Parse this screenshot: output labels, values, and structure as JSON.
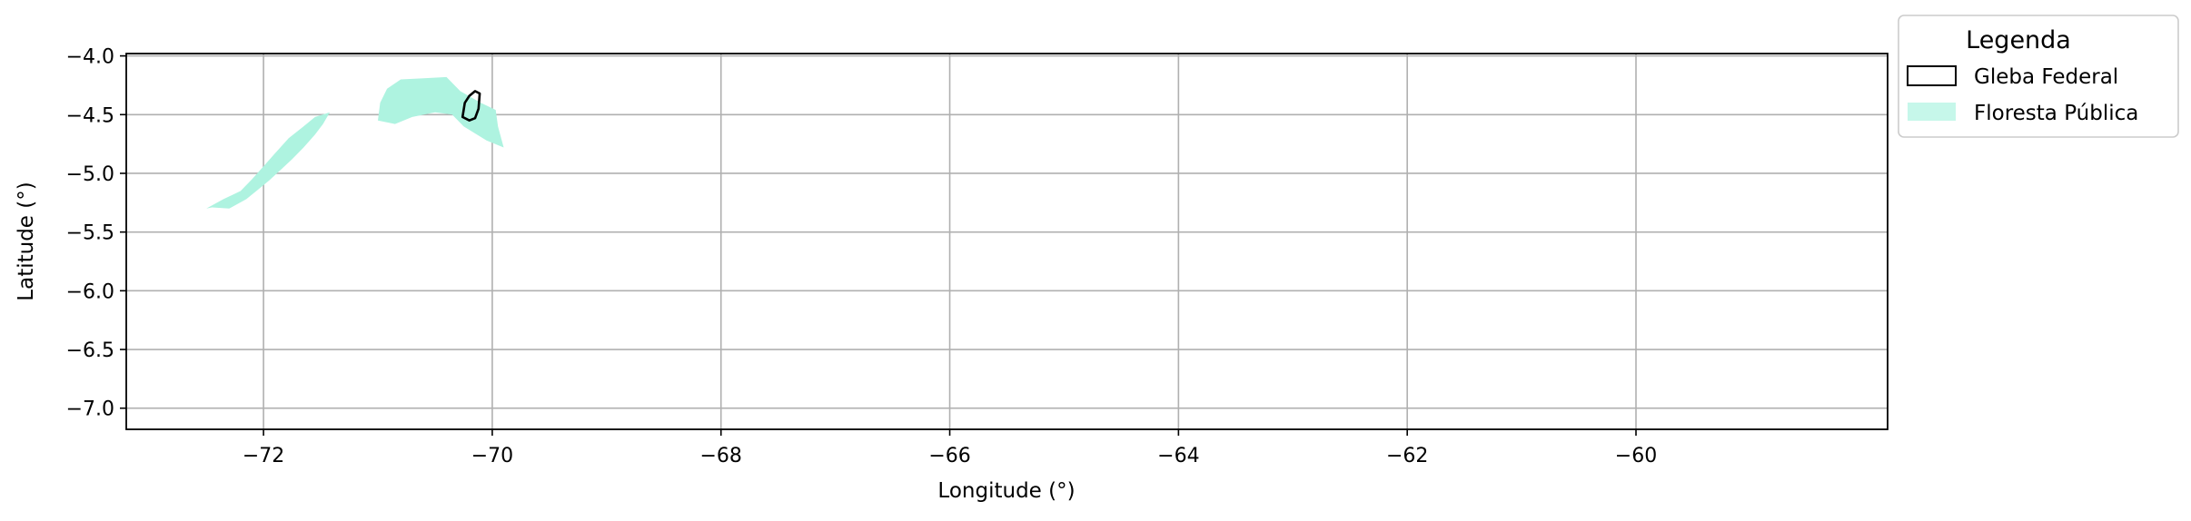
{
  "chart_data": {
    "type": "map",
    "xlabel": "Longitude (°)",
    "ylabel": "Latitude (°)",
    "xlim": [
      -73.2,
      -57.8
    ],
    "ylim": [
      -7.18,
      -3.98
    ],
    "grid": true,
    "x_ticks": [
      -72,
      -70,
      -68,
      -66,
      -64,
      -62,
      -60
    ],
    "x_tick_labels": [
      "−72",
      "−70",
      "−68",
      "−66",
      "−64",
      "−62",
      "−60"
    ],
    "y_ticks": [
      -4.0,
      -4.5,
      -5.0,
      -5.5,
      -6.0,
      -6.5,
      -7.0
    ],
    "y_tick_labels": [
      "−4.0",
      "−4.5",
      "−5.0",
      "−5.5",
      "−6.0",
      "−6.5",
      "−7.0"
    ],
    "legend": {
      "title": "Legenda",
      "placement": "outside upper-right",
      "entries": [
        {
          "label": "Gleba Federal",
          "style": "outline",
          "edge_color": "#000000",
          "face_color": "none"
        },
        {
          "label": "Floresta Pública",
          "style": "fill",
          "face_color": "#aef3e0"
        }
      ]
    },
    "layers": [
      {
        "name": "Floresta Pública",
        "face_color": "#aef3e0",
        "polygons": [
          [
            [
              -72.45,
              -5.29
            ],
            [
              -72.3,
              -5.3
            ],
            [
              -72.15,
              -5.22
            ],
            [
              -72.05,
              -5.14
            ],
            [
              -71.95,
              -5.06
            ],
            [
              -71.85,
              -4.97
            ],
            [
              -71.75,
              -4.88
            ],
            [
              -71.65,
              -4.78
            ],
            [
              -71.55,
              -4.67
            ],
            [
              -71.48,
              -4.58
            ],
            [
              -71.42,
              -4.48
            ],
            [
              -71.55,
              -4.52
            ],
            [
              -71.65,
              -4.6
            ],
            [
              -71.78,
              -4.7
            ],
            [
              -71.9,
              -4.83
            ],
            [
              -72.0,
              -4.94
            ],
            [
              -72.1,
              -5.05
            ],
            [
              -72.2,
              -5.15
            ],
            [
              -72.35,
              -5.22
            ],
            [
              -72.5,
              -5.3
            ]
          ],
          [
            [
              -71.0,
              -4.55
            ],
            [
              -70.98,
              -4.4
            ],
            [
              -70.92,
              -4.28
            ],
            [
              -70.8,
              -4.2
            ],
            [
              -70.6,
              -4.19
            ],
            [
              -70.4,
              -4.18
            ],
            [
              -70.28,
              -4.3
            ],
            [
              -70.1,
              -4.4
            ],
            [
              -69.97,
              -4.46
            ],
            [
              -69.95,
              -4.6
            ],
            [
              -69.9,
              -4.78
            ],
            [
              -70.05,
              -4.72
            ],
            [
              -70.25,
              -4.6
            ],
            [
              -70.35,
              -4.5
            ],
            [
              -70.5,
              -4.48
            ],
            [
              -70.7,
              -4.52
            ],
            [
              -70.85,
              -4.58
            ]
          ]
        ]
      },
      {
        "name": "Gleba Federal",
        "edge_color": "#000000",
        "polygons": [
          [
            [
              -70.26,
              -4.52
            ],
            [
              -70.24,
              -4.4
            ],
            [
              -70.2,
              -4.34
            ],
            [
              -70.15,
              -4.3
            ],
            [
              -70.11,
              -4.32
            ],
            [
              -70.12,
              -4.45
            ],
            [
              -70.15,
              -4.53
            ],
            [
              -70.2,
              -4.55
            ]
          ]
        ]
      }
    ]
  }
}
